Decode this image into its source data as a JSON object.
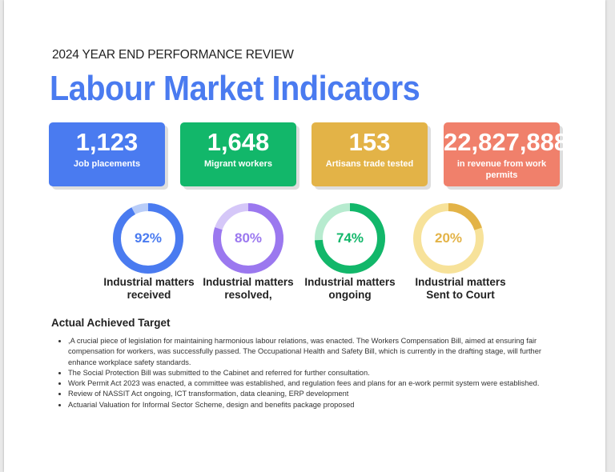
{
  "header": {
    "kicker": "2024 YEAR END PERFORMANCE REVIEW",
    "title": "Labour Market Indicators",
    "title_color": "#4a7bf0"
  },
  "stats": [
    {
      "value": "1,123",
      "label": "Job placements",
      "color": "#4a7bf0"
    },
    {
      "value": "1,648",
      "label": "Migrant workers",
      "color": "#12b76a"
    },
    {
      "value": "153",
      "label": "Artisans trade tested",
      "color": "#e3b347"
    },
    {
      "value": "22,827,888",
      "label": "in revenue from work permits",
      "color": "#f0806b"
    }
  ],
  "donuts": [
    {
      "percent": 92,
      "text": "92%",
      "label": "Industrial matters received",
      "color": "#4a7bf0",
      "track": "#b9cdf8"
    },
    {
      "percent": 80,
      "text": "80%",
      "label": "Industrial matters resolved,",
      "color": "#9b78ef",
      "track": "#d5c7f8"
    },
    {
      "percent": 74,
      "text": "74%",
      "label": "Industrial matters ongoing",
      "color": "#12b76a",
      "track": "#b7ebcf"
    },
    {
      "percent": 20,
      "text": "20%",
      "label": "Industrial matters Sent to Court",
      "color": "#e3b347",
      "track": "#f7e29a"
    }
  ],
  "section": {
    "title": "Actual Achieved Target",
    "items": [
      ",A crucial piece of legislation for maintaining harmonious labour relations, was enacted. The Workers Compensation Bill, aimed at ensuring fair compensation for workers, was successfully passed. The Occupational Health and Safety Bill, which is currently in the drafting stage, will further enhance workplace safety standards.",
      "The Social Protection Bill was submitted to the Cabinet and referred for further consultation.",
      "Work Permit Act 2023 was enacted, a committee was established, and regulation fees and plans for an e-work permit system were established.",
      "Review of NASSIT Act ongoing, ICT transformation, data cleaning, ERP development",
      "Actuarial Valuation for Informal Sector Scheme, design and benefits package proposed"
    ]
  }
}
